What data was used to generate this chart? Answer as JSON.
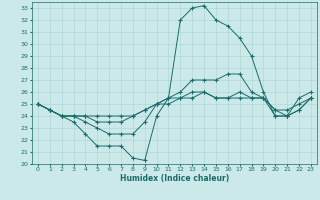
{
  "xlabel": "Humidex (Indice chaleur)",
  "bg_color": "#cce9e9",
  "line_color": "#1a6b6b",
  "marker": "+",
  "marker_size": 3,
  "marker_lw": 0.8,
  "line_width": 0.7,
  "xlim": [
    -0.5,
    23.5
  ],
  "ylim": [
    20,
    33.5
  ],
  "yticks": [
    20,
    21,
    22,
    23,
    24,
    25,
    26,
    27,
    28,
    29,
    30,
    31,
    32,
    33
  ],
  "xticks": [
    0,
    1,
    2,
    3,
    4,
    5,
    6,
    7,
    8,
    9,
    10,
    11,
    12,
    13,
    14,
    15,
    16,
    17,
    18,
    19,
    20,
    21,
    22,
    23
  ],
  "series": [
    [
      25.0,
      24.5,
      24.0,
      23.5,
      22.5,
      21.5,
      21.5,
      21.5,
      20.5,
      20.3,
      24.0,
      25.5,
      32.0,
      33.0,
      33.2,
      32.0,
      31.5,
      30.5,
      29.0,
      26.0,
      24.0,
      24.0,
      25.5,
      26.0
    ],
    [
      25.0,
      24.5,
      24.0,
      24.0,
      23.5,
      23.0,
      22.5,
      22.5,
      22.5,
      23.5,
      25.0,
      25.5,
      26.0,
      27.0,
      27.0,
      27.0,
      27.5,
      27.5,
      26.0,
      25.5,
      24.0,
      24.0,
      24.5,
      25.5
    ],
    [
      25.0,
      24.5,
      24.0,
      24.0,
      24.0,
      23.5,
      23.5,
      23.5,
      24.0,
      24.5,
      25.0,
      25.5,
      25.5,
      26.0,
      26.0,
      25.5,
      25.5,
      26.0,
      25.5,
      25.5,
      24.5,
      24.0,
      24.5,
      25.5
    ],
    [
      25.0,
      24.5,
      24.0,
      24.0,
      24.0,
      24.0,
      24.0,
      24.0,
      24.0,
      24.5,
      25.0,
      25.0,
      25.5,
      25.5,
      26.0,
      25.5,
      25.5,
      25.5,
      25.5,
      25.5,
      24.5,
      24.5,
      25.0,
      25.5
    ]
  ]
}
